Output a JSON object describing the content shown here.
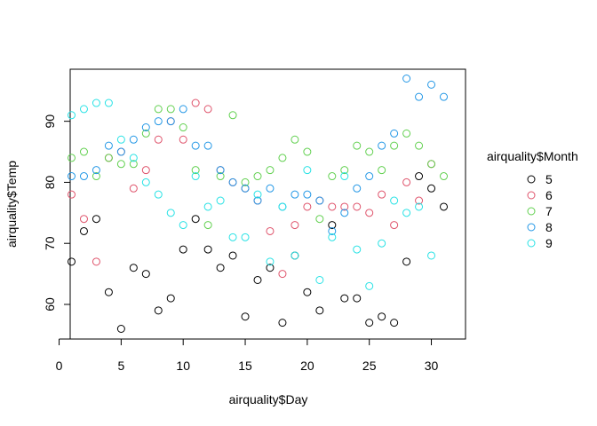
{
  "chart_data": {
    "type": "scatter",
    "title": "",
    "xlabel": "airquality$Day",
    "ylabel": "airquality$Temp",
    "xlim": [
      0,
      31
    ],
    "ylim": [
      56,
      97
    ],
    "xticks": [
      0,
      5,
      10,
      15,
      20,
      25,
      30
    ],
    "yticks": [
      60,
      70,
      80,
      90
    ],
    "grid": false,
    "legend": {
      "title": "airquality$Month",
      "placement": "right"
    },
    "marker": "open-circle",
    "series": [
      {
        "name": "5",
        "color": "#000000",
        "x": [
          1,
          2,
          3,
          4,
          5,
          6,
          7,
          8,
          9,
          10,
          11,
          12,
          13,
          14,
          15,
          16,
          17,
          18,
          19,
          20,
          21,
          22,
          23,
          24,
          25,
          26,
          27,
          28,
          29,
          30,
          31
        ],
        "y": [
          67,
          72,
          74,
          62,
          56,
          66,
          65,
          59,
          61,
          69,
          74,
          69,
          66,
          68,
          58,
          64,
          66,
          57,
          68,
          62,
          59,
          73,
          61,
          61,
          57,
          58,
          57,
          67,
          81,
          79,
          76
        ]
      },
      {
        "name": "6",
        "color": "#DF536B",
        "x": [
          1,
          2,
          3,
          4,
          5,
          6,
          7,
          8,
          9,
          10,
          11,
          12,
          13,
          14,
          15,
          16,
          17,
          18,
          19,
          20,
          21,
          22,
          23,
          24,
          25,
          26,
          27,
          28,
          29,
          30
        ],
        "y": [
          78,
          74,
          67,
          84,
          85,
          79,
          82,
          87,
          90,
          87,
          93,
          92,
          82,
          80,
          79,
          77,
          72,
          65,
          73,
          76,
          77,
          76,
          76,
          76,
          75,
          78,
          73,
          80,
          77,
          83
        ]
      },
      {
        "name": "7",
        "color": "#61D04F",
        "x": [
          1,
          2,
          3,
          4,
          5,
          6,
          7,
          8,
          9,
          10,
          11,
          12,
          13,
          14,
          15,
          16,
          17,
          18,
          19,
          20,
          21,
          22,
          23,
          24,
          25,
          26,
          27,
          28,
          29,
          30,
          31
        ],
        "y": [
          84,
          85,
          81,
          84,
          83,
          83,
          88,
          92,
          92,
          89,
          82,
          73,
          81,
          91,
          80,
          81,
          82,
          84,
          87,
          85,
          74,
          81,
          82,
          86,
          85,
          82,
          86,
          88,
          86,
          83,
          81
        ]
      },
      {
        "name": "8",
        "color": "#2297E6",
        "x": [
          1,
          2,
          3,
          4,
          5,
          6,
          7,
          8,
          9,
          10,
          11,
          12,
          13,
          14,
          15,
          16,
          17,
          18,
          19,
          20,
          21,
          22,
          23,
          24,
          25,
          26,
          27,
          28,
          29,
          30,
          31
        ],
        "y": [
          81,
          81,
          82,
          86,
          85,
          87,
          89,
          90,
          90,
          92,
          86,
          86,
          82,
          80,
          79,
          77,
          79,
          76,
          78,
          78,
          77,
          72,
          75,
          79,
          81,
          86,
          88,
          97,
          94,
          96,
          94
        ]
      },
      {
        "name": "9",
        "color": "#28E2E5",
        "x": [
          1,
          2,
          3,
          4,
          5,
          6,
          7,
          8,
          9,
          10,
          11,
          12,
          13,
          14,
          15,
          16,
          17,
          18,
          19,
          20,
          21,
          22,
          23,
          24,
          25,
          26,
          27,
          28,
          29,
          30
        ],
        "y": [
          91,
          92,
          93,
          93,
          87,
          84,
          80,
          78,
          75,
          73,
          81,
          76,
          77,
          71,
          71,
          78,
          67,
          76,
          68,
          82,
          64,
          71,
          81,
          69,
          63,
          70,
          77,
          75,
          76,
          68
        ]
      }
    ]
  }
}
